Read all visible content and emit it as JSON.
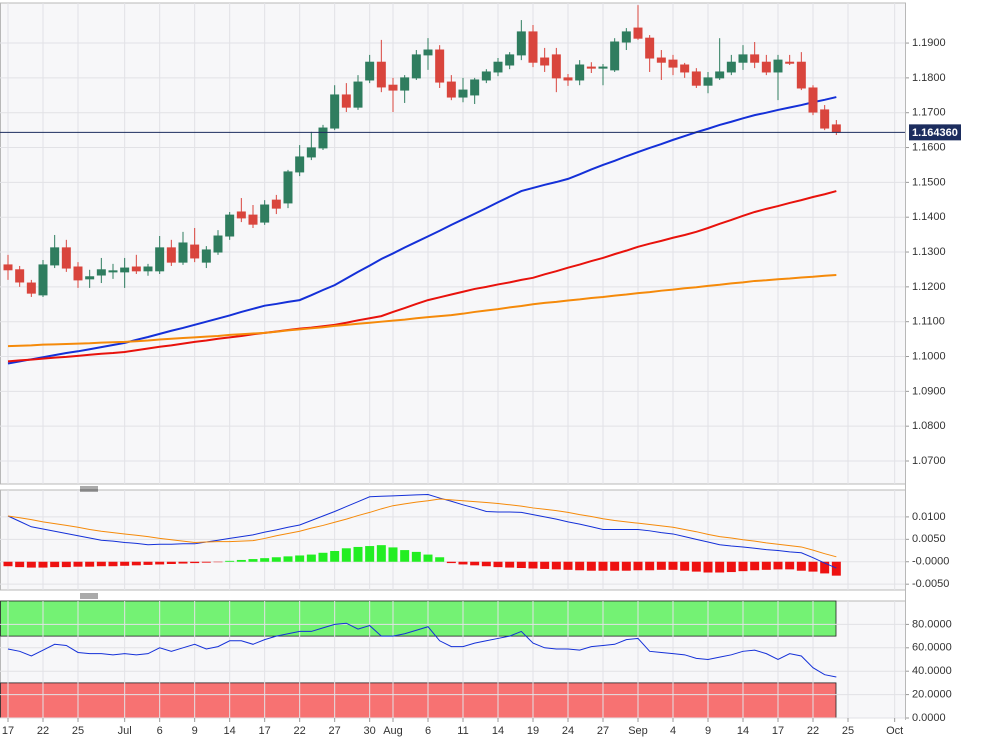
{
  "chart_data": [
    {
      "type": "candlestick",
      "categories": [
        "17",
        null,
        null,
        "22",
        null,
        null,
        "25",
        null,
        null,
        null,
        "Jul",
        null,
        null,
        "6",
        null,
        null,
        "9",
        null,
        null,
        "14",
        null,
        null,
        "17",
        null,
        null,
        "22",
        null,
        null,
        "27",
        null,
        null,
        "30",
        null,
        "Aug",
        null,
        null,
        "6",
        null,
        null,
        "11",
        null,
        null,
        "14",
        null,
        null,
        "19",
        null,
        null,
        "24",
        null,
        null,
        "27",
        null,
        null,
        "Sep",
        null,
        null,
        "4",
        null,
        null,
        "9",
        null,
        null,
        "14",
        null,
        null,
        "17",
        null,
        null,
        "22",
        null,
        null,
        "25",
        null,
        null,
        null,
        "Oct"
      ],
      "open": [
        1.1263,
        1.1249,
        1.1211,
        1.1177,
        1.1263,
        1.1312,
        1.1257,
        1.1223,
        1.1234,
        1.1243,
        1.1243,
        1.1257,
        1.1246,
        1.1246,
        1.1312,
        1.1271,
        1.132,
        1.1271,
        1.13,
        1.1346,
        1.1415,
        1.1406,
        1.1386,
        1.1449,
        1.1441,
        1.153,
        1.1573,
        1.1599,
        1.1656,
        1.1751,
        1.1716,
        1.1794,
        1.1845,
        1.1779,
        1.1765,
        1.18,
        1.1866,
        1.188,
        1.1788,
        1.1745,
        1.1751,
        1.1794,
        1.1817,
        1.1837,
        1.1866,
        1.1932,
        1.1857,
        1.1866,
        1.18,
        1.1794,
        1.1831,
        1.1828,
        1.1823,
        1.1903,
        1.1943,
        1.1914,
        1.1857,
        1.1851,
        1.1837,
        1.1817,
        1.1779,
        1.18,
        1.1817,
        1.1845,
        1.1866,
        1.1845,
        1.1817,
        1.1845,
        1.1845,
        1.1771,
        1.1708,
        1.1665,
        null,
        null,
        null,
        null,
        null
      ],
      "high": [
        1.1292,
        1.126,
        1.122,
        1.1277,
        1.1349,
        1.1335,
        1.1271,
        1.1249,
        1.1283,
        1.1266,
        1.1283,
        1.1292,
        1.1266,
        1.1346,
        1.1335,
        1.1358,
        1.1369,
        1.1317,
        1.1363,
        1.1415,
        1.1455,
        1.1435,
        1.1449,
        1.1464,
        1.1536,
        1.1607,
        1.1645,
        1.1665,
        1.1779,
        1.1785,
        1.1808,
        1.1866,
        1.1909,
        1.18,
        1.1808,
        1.188,
        1.1914,
        1.1894,
        1.1808,
        1.18,
        1.18,
        1.1825,
        1.1857,
        1.1874,
        1.1966,
        1.1952,
        1.1886,
        1.1886,
        1.1811,
        1.1851,
        1.1845,
        1.184,
        1.1914,
        1.1943,
        1.2009,
        1.1923,
        1.188,
        1.1866,
        1.1843,
        1.1828,
        1.1817,
        1.1914,
        1.1866,
        1.1894,
        1.1903,
        1.1866,
        1.1866,
        1.1866,
        1.1874,
        1.1779,
        1.1722,
        1.1679,
        null,
        null,
        null,
        null,
        null
      ],
      "low": [
        1.122,
        1.12,
        1.1171,
        1.1171,
        1.1254,
        1.1243,
        1.1197,
        1.1197,
        1.1211,
        1.1223,
        1.1197,
        1.1237,
        1.1232,
        1.1237,
        1.126,
        1.1263,
        1.1271,
        1.1254,
        1.1292,
        1.1335,
        1.1386,
        1.1369,
        1.1378,
        1.1409,
        1.1426,
        1.1518,
        1.1564,
        1.1593,
        1.165,
        1.1702,
        1.1708,
        1.1785,
        1.1759,
        1.1702,
        1.1728,
        1.1794,
        1.1823,
        1.1771,
        1.1736,
        1.173,
        1.1725,
        1.1785,
        1.1805,
        1.1825,
        1.1851,
        1.1831,
        1.1817,
        1.1759,
        1.1777,
        1.1779,
        1.1814,
        1.1779,
        1.1817,
        1.188,
        1.1909,
        1.1817,
        1.1794,
        1.1808,
        1.18,
        1.1771,
        1.1756,
        1.1794,
        1.1808,
        1.1823,
        1.1828,
        1.1808,
        1.1736,
        1.1837,
        1.1765,
        1.1693,
        1.165,
        1.1636,
        null,
        null,
        null,
        null,
        null
      ],
      "close": [
        1.1249,
        1.1214,
        1.1182,
        1.1263,
        1.1312,
        1.1254,
        1.122,
        1.1229,
        1.1249,
        1.1246,
        1.1254,
        1.1246,
        1.1257,
        1.1312,
        1.1271,
        1.1326,
        1.1283,
        1.1306,
        1.1346,
        1.1406,
        1.1398,
        1.138,
        1.1435,
        1.1426,
        1.153,
        1.1573,
        1.1599,
        1.1656,
        1.1751,
        1.1716,
        1.1788,
        1.1845,
        1.1774,
        1.1765,
        1.18,
        1.1866,
        1.188,
        1.1788,
        1.1745,
        1.1765,
        1.1794,
        1.1817,
        1.1845,
        1.1866,
        1.1932,
        1.1845,
        1.1837,
        1.18,
        1.1794,
        1.1837,
        1.1828,
        1.1831,
        1.1903,
        1.1932,
        1.1914,
        1.1857,
        1.1845,
        1.1831,
        1.1817,
        1.1779,
        1.18,
        1.1817,
        1.1845,
        1.1866,
        1.1845,
        1.1817,
        1.1851,
        1.1843,
        1.1771,
        1.1702,
        1.1656,
        1.1644,
        null,
        null,
        null,
        null,
        null
      ],
      "up_color": "#2f7d5f",
      "down_color": "#d9453d",
      "overlays": [
        {
          "color": "#1430d8",
          "values": [
            1.098,
            1.0986,
            1.0992,
            1.0998,
            1.1004,
            1.101,
            1.1015,
            1.1021,
            1.1027,
            1.1033,
            1.1039,
            1.1048,
            1.1056,
            1.1065,
            1.1074,
            1.1082,
            1.1091,
            1.11,
            1.1109,
            1.1118,
            1.1128,
            1.1137,
            1.1146,
            1.1151,
            1.1157,
            1.1162,
            1.1176,
            1.1191,
            1.1205,
            1.1224,
            1.1243,
            1.1261,
            1.128,
            1.1296,
            1.1313,
            1.1329,
            1.1345,
            1.1361,
            1.1378,
            1.1394,
            1.141,
            1.1426,
            1.1443,
            1.1459,
            1.1475,
            1.1484,
            1.1493,
            1.1501,
            1.151,
            1.1523,
            1.1537,
            1.155,
            1.1562,
            1.1575,
            1.1587,
            1.1599,
            1.161,
            1.1622,
            1.1633,
            1.1644,
            1.1654,
            1.1665,
            1.1674,
            1.1684,
            1.1693,
            1.17,
            1.1708,
            1.1715,
            1.1722,
            1.173,
            1.1737,
            1.1745,
            null,
            null,
            null,
            null,
            null
          ]
        },
        {
          "color": "#e8120c",
          "values": [
            1.0986,
            1.0989,
            1.0991,
            1.0994,
            1.0997,
            1.0999,
            1.1002,
            1.1005,
            1.1008,
            1.101,
            1.1013,
            1.1018,
            1.1023,
            1.1028,
            1.1032,
            1.1037,
            1.1042,
            1.1046,
            1.1051,
            1.1055,
            1.1059,
            1.1064,
            1.1068,
            1.1072,
            1.1076,
            1.108,
            1.1083,
            1.1087,
            1.1091,
            1.1097,
            1.1104,
            1.111,
            1.1116,
            1.1128,
            1.1139,
            1.1151,
            1.1162,
            1.117,
            1.1178,
            1.1186,
            1.1194,
            1.12,
            1.1207,
            1.1213,
            1.122,
            1.1226,
            1.1236,
            1.1245,
            1.1255,
            1.1264,
            1.1274,
            1.1283,
            1.1294,
            1.1304,
            1.1315,
            1.1324,
            1.1332,
            1.1341,
            1.1349,
            1.1358,
            1.1369,
            1.1381,
            1.1392,
            1.1404,
            1.1415,
            1.1424,
            1.1432,
            1.1441,
            1.1449,
            1.1458,
            1.1466,
            1.1475,
            null,
            null,
            null,
            null,
            null
          ]
        },
        {
          "color": "#f58a0a",
          "values": [
            1.103,
            1.1031,
            1.1032,
            1.1034,
            1.1035,
            1.1036,
            1.1037,
            1.1038,
            1.104,
            1.1041,
            1.1042,
            1.1044,
            1.1046,
            1.1049,
            1.1051,
            1.1053,
            1.1055,
            1.1057,
            1.1059,
            1.1062,
            1.1064,
            1.1066,
            1.1068,
            1.1071,
            1.1075,
            1.1078,
            1.1081,
            1.1084,
            1.1088,
            1.1091,
            1.1094,
            1.1097,
            1.11,
            1.1103,
            1.1106,
            1.111,
            1.1113,
            1.1116,
            1.1119,
            1.1123,
            1.1128,
            1.1132,
            1.1136,
            1.1141,
            1.1145,
            1.115,
            1.1154,
            1.1157,
            1.1161,
            1.1164,
            1.1168,
            1.1171,
            1.1175,
            1.1178,
            1.1182,
            1.1185,
            1.1189,
            1.1192,
            1.1196,
            1.1199,
            1.1203,
            1.1206,
            1.121,
            1.1213,
            1.1217,
            1.1219,
            1.1222,
            1.1224,
            1.1227,
            1.1229,
            1.1232,
            1.1234,
            null,
            null,
            null,
            null,
            null
          ]
        }
      ],
      "price_line": {
        "value": 1.16436,
        "label": "1.164360",
        "color": "#1c2d5e"
      },
      "ylim": [
        1.0634,
        1.2015
      ],
      "yticks": [
        {
          "value": 1.07,
          "label": "1.0700"
        },
        {
          "value": 1.08,
          "label": "1.0800"
        },
        {
          "value": 1.09,
          "label": "1.0900"
        },
        {
          "value": 1.1,
          "label": "1.1000"
        },
        {
          "value": 1.11,
          "label": "1.1100"
        },
        {
          "value": 1.12,
          "label": "1.1200"
        },
        {
          "value": 1.13,
          "label": "1.1300"
        },
        {
          "value": 1.14,
          "label": "1.1400"
        },
        {
          "value": 1.15,
          "label": "1.1500"
        },
        {
          "value": 1.16,
          "label": "1.1600"
        },
        {
          "value": 1.17,
          "label": "1.1700"
        },
        {
          "value": 1.18,
          "label": "1.1800"
        },
        {
          "value": 1.19,
          "label": "1.1900"
        }
      ],
      "grid": true
    },
    {
      "type": "macd",
      "values": [
        -0.001,
        -0.0012,
        -0.0013,
        -0.0013,
        -0.0012,
        -0.0012,
        -0.0011,
        -0.0011,
        -0.001,
        -0.001,
        -0.0009,
        -0.0008,
        -0.0007,
        -0.0006,
        -0.0005,
        -0.0004,
        -0.0003,
        -0.0002,
        -0.0001,
        0.0002,
        0.0004,
        0.0006,
        0.0008,
        0.001,
        0.0012,
        0.0014,
        0.0016,
        0.002,
        0.0024,
        0.003,
        0.0033,
        0.0035,
        0.0037,
        0.0032,
        0.0026,
        0.0022,
        0.0016,
        0.001,
        -0.0003,
        -0.0006,
        -0.0008,
        -0.001,
        -0.0012,
        -0.0013,
        -0.0014,
        -0.0015,
        -0.0016,
        -0.0017,
        -0.0018,
        -0.0019,
        -0.002,
        -0.002,
        -0.002,
        -0.002,
        -0.0019,
        -0.0019,
        -0.0018,
        -0.0018,
        -0.002,
        -0.0022,
        -0.0024,
        -0.0024,
        -0.0023,
        -0.0021,
        -0.0019,
        -0.0018,
        -0.0017,
        -0.0017,
        -0.002,
        -0.0022,
        -0.0026,
        -0.0031,
        null,
        null,
        null,
        null,
        null
      ],
      "up_color": "#22ee22",
      "down_color": "#ee1111",
      "lines": [
        {
          "color": "#1430d8",
          "values": [
            0.0102,
            0.009,
            0.0078,
            0.0073,
            0.0068,
            0.0063,
            0.0058,
            0.0053,
            0.0048,
            0.0046,
            0.0043,
            0.0041,
            0.0038,
            0.0039,
            0.0039,
            0.004,
            0.004,
            0.0044,
            0.0048,
            0.0052,
            0.0056,
            0.006,
            0.0066,
            0.0071,
            0.0077,
            0.0082,
            0.0092,
            0.0102,
            0.0112,
            0.0123,
            0.0134,
            0.0145,
            0.0146,
            0.0147,
            0.0148,
            0.0149,
            0.015,
            0.0142,
            0.0135,
            0.0127,
            0.012,
            0.0112,
            0.0111,
            0.0111,
            0.011,
            0.0105,
            0.01,
            0.0095,
            0.0089,
            0.0084,
            0.0078,
            0.0072,
            0.0072,
            0.0072,
            0.0072,
            0.0069,
            0.0065,
            0.0062,
            0.0056,
            0.005,
            0.0044,
            0.0038,
            0.0035,
            0.0033,
            0.003,
            0.0027,
            0.0025,
            0.0022,
            0.002,
            0.0009,
            -0.0003,
            -0.0014,
            null,
            null,
            null,
            null,
            null
          ]
        },
        {
          "color": "#f58a0a",
          "values": [
            0.0102,
            0.0098,
            0.0094,
            0.0089,
            0.0085,
            0.0081,
            0.0077,
            0.0072,
            0.0068,
            0.0065,
            0.0062,
            0.0059,
            0.0056,
            0.0052,
            0.0049,
            0.0046,
            0.0043,
            0.0044,
            0.0045,
            0.0045,
            0.0046,
            0.0047,
            0.0052,
            0.0058,
            0.0063,
            0.0068,
            0.0075,
            0.0081,
            0.0088,
            0.0095,
            0.0103,
            0.011,
            0.0118,
            0.0125,
            0.0129,
            0.0133,
            0.0136,
            0.014,
            0.0138,
            0.0136,
            0.0134,
            0.0132,
            0.013,
            0.0127,
            0.0124,
            0.012,
            0.0117,
            0.0114,
            0.011,
            0.0105,
            0.0101,
            0.0096,
            0.0092,
            0.0089,
            0.0086,
            0.0083,
            0.008,
            0.0077,
            0.0072,
            0.0067,
            0.0061,
            0.0056,
            0.0053,
            0.0049,
            0.0046,
            0.0042,
            0.0039,
            0.0036,
            0.0033,
            0.0026,
            0.0018,
            0.0011,
            null,
            null,
            null,
            null,
            null
          ]
        }
      ],
      "ylim": [
        -0.0063,
        0.016
      ],
      "yticks": [
        {
          "value": 0.01,
          "label": "0.0100"
        },
        {
          "value": 0.005,
          "label": "0.0050"
        },
        {
          "value": 0,
          "label": "-0.0000"
        },
        {
          "value": -0.005,
          "label": "-0.0050"
        }
      ],
      "grid": true
    },
    {
      "type": "line",
      "values": [
        59,
        57,
        53,
        58,
        63,
        62,
        56,
        55,
        55,
        54,
        55,
        54,
        55,
        60,
        57,
        60,
        63,
        59,
        61,
        66,
        66,
        63,
        67,
        70,
        72,
        74,
        74,
        77,
        80,
        81,
        76,
        79,
        70,
        70,
        72,
        75,
        78,
        66,
        61,
        61,
        64,
        66,
        68,
        70,
        74,
        64,
        60,
        59,
        59,
        58,
        61,
        62,
        63,
        67,
        68,
        57,
        56,
        55,
        54,
        51,
        50,
        52,
        54,
        57,
        58,
        55,
        50,
        55,
        53,
        43,
        37,
        35,
        null,
        null,
        null,
        null,
        null
      ],
      "color": "#1430d8",
      "bands": [
        {
          "range": [
            70,
            100
          ],
          "color": "#74f274"
        },
        {
          "range": [
            0,
            30
          ],
          "color": "#f77272"
        }
      ],
      "ylim": [
        0,
        100
      ],
      "yticks": [
        {
          "value": 0,
          "label": "0.0000"
        },
        {
          "value": 20,
          "label": "20.0000"
        },
        {
          "value": 40,
          "label": "40.0000"
        },
        {
          "value": 60,
          "label": "60.0000"
        },
        {
          "value": 80,
          "label": "80.0000"
        }
      ],
      "grid": true
    }
  ]
}
